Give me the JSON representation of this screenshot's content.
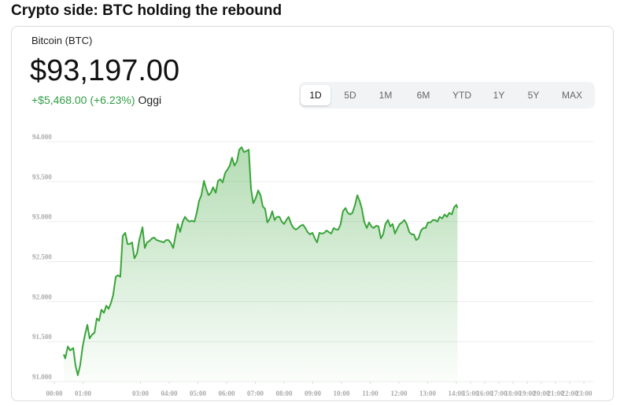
{
  "heading": "Crypto side: BTC holding the rebound",
  "asset": "Bitcoin (BTC)",
  "price": "$93,197.00",
  "change": "+$5,468.00 (+6.23%)",
  "period": "Oggi",
  "ranges": [
    "1D",
    "5D",
    "1M",
    "6M",
    "YTD",
    "1Y",
    "5Y",
    "MAX"
  ],
  "selected_range": "1D",
  "chart_data": {
    "type": "line",
    "color": "#3aa43a",
    "grid": true,
    "xlim": [
      0,
      23
    ],
    "xticks": [
      {
        "value": 0,
        "label": "00:00"
      },
      {
        "value": 1,
        "label": "01:00"
      },
      {
        "value": 3,
        "label": "03:00"
      },
      {
        "value": 4,
        "label": "04:00"
      },
      {
        "value": 5,
        "label": "05:00"
      },
      {
        "value": 6,
        "label": "06:00"
      },
      {
        "value": 7,
        "label": "07:00"
      },
      {
        "value": 8,
        "label": "08:00"
      },
      {
        "value": 9,
        "label": "09:00"
      },
      {
        "value": 10,
        "label": "10:00"
      },
      {
        "value": 11,
        "label": "11:00"
      },
      {
        "value": 12,
        "label": "12:00"
      },
      {
        "value": 13,
        "label": "13:00"
      },
      {
        "value": 14,
        "label": "14:00"
      },
      {
        "value": 15,
        "label": "15:00"
      },
      {
        "value": 16,
        "label": "16:00"
      },
      {
        "value": 17,
        "label": "17:00"
      },
      {
        "value": 18,
        "label": "18:00"
      },
      {
        "value": 19,
        "label": "19:00"
      },
      {
        "value": 20,
        "label": "20:00"
      },
      {
        "value": 21,
        "label": "21:00"
      },
      {
        "value": 22,
        "label": "22:00"
      },
      {
        "value": 23,
        "label": "23:00"
      }
    ],
    "ylim": [
      91000,
      94000
    ],
    "yticks": [
      {
        "value": 91000,
        "label": "91.000"
      },
      {
        "value": 91500,
        "label": "91.500"
      },
      {
        "value": 92000,
        "label": "92.000"
      },
      {
        "value": 92500,
        "label": "92.500"
      },
      {
        "value": 93000,
        "label": "93.000"
      },
      {
        "value": 93500,
        "label": "93.500"
      },
      {
        "value": 94000,
        "label": "94.000"
      }
    ],
    "x": [
      0.33,
      0.38,
      0.47,
      0.55,
      0.66,
      0.74,
      0.82,
      0.9,
      0.99,
      1.07,
      1.15,
      1.23,
      1.32,
      1.4,
      1.48,
      1.56,
      1.64,
      1.73,
      1.81,
      1.89,
      1.97,
      2.05,
      2.14,
      2.22,
      2.3,
      2.38,
      2.47,
      2.55,
      2.63,
      2.71,
      2.79,
      2.88,
      2.96,
      3.07,
      3.15,
      3.23,
      3.32,
      3.4,
      3.48,
      3.56,
      3.64,
      3.73,
      3.81,
      3.89,
      3.97,
      4.05,
      4.14,
      4.22,
      4.3,
      4.38,
      4.47,
      4.55,
      4.63,
      4.71,
      4.79,
      4.88,
      4.96,
      5.04,
      5.12,
      5.21,
      5.29,
      5.37,
      5.45,
      5.53,
      5.62,
      5.7,
      5.78,
      5.86,
      5.95,
      6.03,
      6.11,
      6.19,
      6.27,
      6.36,
      6.44,
      6.52,
      6.6,
      6.68,
      6.77,
      6.85,
      6.93,
      7.01,
      7.1,
      7.18,
      7.26,
      7.34,
      7.42,
      7.51,
      7.59,
      7.67,
      7.75,
      7.84,
      7.92,
      8.0,
      8.08,
      8.16,
      8.25,
      8.33,
      8.41,
      8.49,
      8.58,
      8.66,
      8.74,
      8.82,
      8.9,
      8.99,
      9.07,
      9.15,
      9.23,
      9.32,
      9.4,
      9.48,
      9.56,
      9.64,
      9.73,
      9.81,
      9.89,
      9.97,
      10.05,
      10.14,
      10.22,
      10.3,
      10.38,
      10.47,
      10.55,
      10.63,
      10.71,
      10.79,
      10.88,
      10.96,
      11.04,
      11.12,
      11.21,
      11.29,
      11.37,
      11.45,
      11.53,
      11.62,
      11.7,
      11.78,
      11.86,
      11.95,
      12.03,
      12.11,
      12.19,
      12.27,
      12.36,
      12.44,
      12.52,
      12.6,
      12.68,
      12.77,
      12.85,
      12.93,
      13.01,
      13.1,
      13.18,
      13.26,
      13.34,
      13.42,
      13.51,
      13.59,
      13.67,
      13.75,
      13.84,
      13.92,
      14.0,
      14.08
    ],
    "values": [
      91340,
      91290,
      91440,
      91390,
      91420,
      91200,
      91080,
      91200,
      91440,
      91590,
      91710,
      91540,
      91590,
      91610,
      91790,
      91760,
      91900,
      91860,
      91950,
      91910,
      91980,
      92080,
      92310,
      92330,
      92310,
      92820,
      92860,
      92720,
      92720,
      92740,
      92540,
      92600,
      92770,
      92930,
      92670,
      92740,
      92760,
      92790,
      92800,
      92770,
      92760,
      92750,
      92740,
      92770,
      92770,
      92740,
      92670,
      92820,
      92970,
      92870,
      93000,
      93060,
      93020,
      93000,
      93010,
      93000,
      93110,
      93260,
      93330,
      93510,
      93410,
      93330,
      93360,
      93430,
      93360,
      93510,
      93530,
      93490,
      93610,
      93650,
      93700,
      93800,
      93700,
      93750,
      93900,
      93930,
      93870,
      93880,
      93900,
      93410,
      93230,
      93290,
      93390,
      93330,
      93190,
      93160,
      92990,
      93040,
      93130,
      93020,
      93060,
      93060,
      93000,
      92970,
      93020,
      93060,
      92970,
      92920,
      92900,
      92920,
      92950,
      92960,
      92920,
      92870,
      92840,
      92860,
      92790,
      92740,
      92860,
      92850,
      92860,
      92890,
      92870,
      92850,
      92920,
      92900,
      92900,
      92970,
      93130,
      93170,
      93110,
      93090,
      93110,
      93210,
      93330,
      93260,
      93160,
      93000,
      92920,
      92990,
      92940,
      92920,
      92950,
      92940,
      92790,
      92840,
      92970,
      93020,
      92940,
      92970,
      92850,
      92920,
      92970,
      92990,
      93020,
      92970,
      92870,
      92840,
      92840,
      92770,
      92790,
      92890,
      92920,
      92920,
      92990,
      92990,
      93020,
      93020,
      93000,
      93060,
      93040,
      93090,
      93060,
      93110,
      93090,
      93180,
      93210,
      93170
    ]
  }
}
